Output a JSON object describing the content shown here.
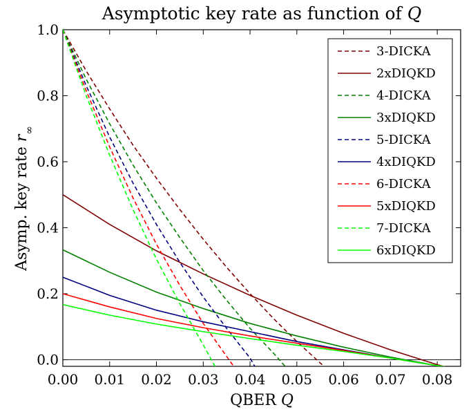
{
  "chart_data": {
    "type": "line",
    "title": "Asymptotic key rate as function of",
    "title_var": "Q",
    "xlabel": "QBER",
    "xlabel_var": "Q",
    "ylabel": "Asymp. key rate",
    "ylabel_var": "r",
    "ylabel_sub": "∞",
    "xlim": [
      0.0,
      0.085
    ],
    "ylim": [
      -0.02,
      1.0
    ],
    "xticks": [
      0.0,
      0.01,
      0.02,
      0.03,
      0.04,
      0.05,
      0.06,
      0.07,
      0.08
    ],
    "yticks": [
      0.0,
      0.2,
      0.4,
      0.6,
      0.8,
      1.0
    ],
    "xtick_labels": [
      "0.00",
      "0.01",
      "0.02",
      "0.03",
      "0.04",
      "0.05",
      "0.06",
      "0.07",
      "0.08"
    ],
    "ytick_labels": [
      "0.0",
      "0.2",
      "0.4",
      "0.6",
      "0.8",
      "1.0"
    ],
    "reference_line_y": 0,
    "grid": false,
    "legend_position": "top-right",
    "series": [
      {
        "name": "3-DICKA",
        "style": "dashed",
        "color": "#800000",
        "x": [
          0,
          0.005,
          0.01,
          0.015,
          0.02,
          0.025,
          0.03,
          0.035,
          0.04,
          0.045,
          0.05,
          0.055,
          0.0575
        ],
        "y": [
          1.0,
          0.875,
          0.76,
          0.65,
          0.55,
          0.455,
          0.365,
          0.28,
          0.2,
          0.125,
          0.055,
          -0.01,
          -0.04
        ]
      },
      {
        "name": "2xDIQKD",
        "style": "solid",
        "color": "#800000",
        "x": [
          0,
          0.01,
          0.02,
          0.03,
          0.04,
          0.05,
          0.06,
          0.07,
          0.08,
          0.085
        ],
        "y": [
          0.5,
          0.41,
          0.33,
          0.26,
          0.195,
          0.135,
          0.08,
          0.03,
          -0.015,
          -0.035
        ]
      },
      {
        "name": "4-DICKA",
        "style": "dashed",
        "color": "#008000",
        "x": [
          0,
          0.005,
          0.01,
          0.015,
          0.02,
          0.025,
          0.03,
          0.035,
          0.04,
          0.045,
          0.0475
        ],
        "y": [
          1.0,
          0.85,
          0.715,
          0.59,
          0.475,
          0.37,
          0.27,
          0.18,
          0.095,
          0.02,
          -0.02
        ]
      },
      {
        "name": "3xDIQKD",
        "style": "solid",
        "color": "#008000",
        "x": [
          0,
          0.01,
          0.02,
          0.03,
          0.04,
          0.05,
          0.06,
          0.07,
          0.08,
          0.085
        ],
        "y": [
          0.333,
          0.265,
          0.205,
          0.155,
          0.11,
          0.072,
          0.038,
          0.008,
          -0.018,
          -0.03
        ]
      },
      {
        "name": "5-DICKA",
        "style": "dashed",
        "color": "#000080",
        "x": [
          0,
          0.005,
          0.01,
          0.015,
          0.02,
          0.025,
          0.03,
          0.035,
          0.04,
          0.041
        ],
        "y": [
          1.0,
          0.83,
          0.675,
          0.535,
          0.41,
          0.295,
          0.19,
          0.095,
          0.005,
          -0.02
        ]
      },
      {
        "name": "4xDIQKD",
        "style": "solid",
        "color": "#000080",
        "x": [
          0,
          0.01,
          0.02,
          0.03,
          0.04,
          0.05,
          0.06,
          0.07,
          0.08,
          0.085
        ],
        "y": [
          0.25,
          0.195,
          0.15,
          0.115,
          0.085,
          0.055,
          0.03,
          0.005,
          -0.018,
          -0.028
        ]
      },
      {
        "name": "6-DICKA",
        "style": "dashed",
        "color": "#ff0000",
        "x": [
          0,
          0.005,
          0.01,
          0.015,
          0.02,
          0.025,
          0.03,
          0.035,
          0.0365
        ],
        "y": [
          1.0,
          0.815,
          0.645,
          0.49,
          0.35,
          0.225,
          0.11,
          0.01,
          -0.02
        ]
      },
      {
        "name": "5xDIQKD",
        "style": "solid",
        "color": "#ff0000",
        "x": [
          0,
          0.01,
          0.02,
          0.03,
          0.04,
          0.05,
          0.06,
          0.07,
          0.08,
          0.085
        ],
        "y": [
          0.2,
          0.16,
          0.125,
          0.097,
          0.072,
          0.05,
          0.028,
          0.005,
          -0.018,
          -0.028
        ]
      },
      {
        "name": "7-DICKA",
        "style": "dashed",
        "color": "#00ff00",
        "x": [
          0,
          0.005,
          0.01,
          0.015,
          0.02,
          0.025,
          0.03,
          0.0325
        ],
        "y": [
          1.0,
          0.8,
          0.62,
          0.455,
          0.305,
          0.17,
          0.045,
          -0.02
        ]
      },
      {
        "name": "6xDIQKD",
        "style": "solid",
        "color": "#00ff00",
        "x": [
          0,
          0.01,
          0.02,
          0.03,
          0.04,
          0.05,
          0.06,
          0.07,
          0.08,
          0.085
        ],
        "y": [
          0.167,
          0.135,
          0.108,
          0.085,
          0.064,
          0.044,
          0.025,
          0.005,
          -0.018,
          -0.028
        ]
      }
    ]
  }
}
